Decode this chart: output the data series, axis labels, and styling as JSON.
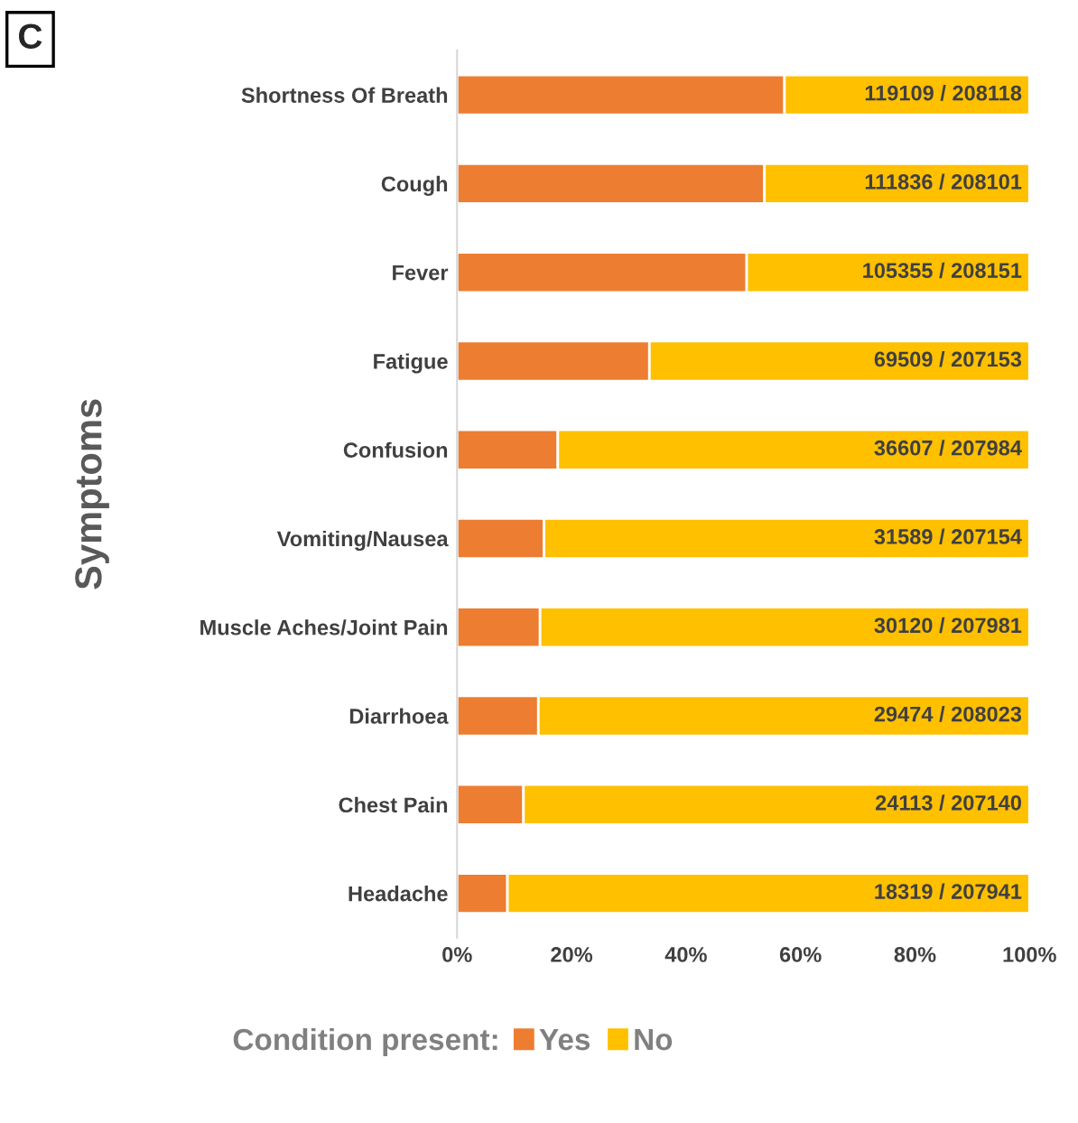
{
  "chart_data": {
    "type": "bar",
    "orientation": "horizontal",
    "stacked": true,
    "ylabel": "Symptoms",
    "categories": [
      "Shortness Of Breath",
      "Cough",
      "Fever",
      "Fatigue",
      "Confusion",
      "Vomiting/Nausea",
      "Muscle Aches/Joint Pain",
      "Diarrhoea",
      "Chest Pain",
      "Headache"
    ],
    "series": [
      {
        "name": "Yes",
        "color": "#ed7d31",
        "values": [
          57.2,
          53.7,
          50.6,
          33.6,
          17.6,
          15.2,
          14.5,
          14.2,
          11.6,
          8.8
        ]
      },
      {
        "name": "No",
        "color": "#ffc000",
        "values": [
          42.8,
          46.3,
          49.4,
          66.4,
          82.4,
          84.8,
          85.5,
          85.8,
          88.4,
          91.2
        ]
      }
    ],
    "xlim": [
      0,
      100
    ],
    "xticks": [
      {
        "value": 0,
        "label": "0%"
      },
      {
        "value": 20,
        "label": "20%"
      },
      {
        "value": 40,
        "label": "40%"
      },
      {
        "value": 60,
        "label": "60%"
      },
      {
        "value": 80,
        "label": "80%"
      },
      {
        "value": 100,
        "label": "100%"
      }
    ],
    "legend": "bottom",
    "legend_title": "Condition present:",
    "grid": false,
    "annotations": [
      "C",
      "119109 / 208118",
      "111836 / 208101",
      "105355 / 208151",
      "69509 / 207153",
      "36607 / 207984",
      "31589 / 207154",
      "30120 / 207981",
      "29474 / 208023",
      "24113 / 207140",
      "18319 / 207941"
    ]
  }
}
